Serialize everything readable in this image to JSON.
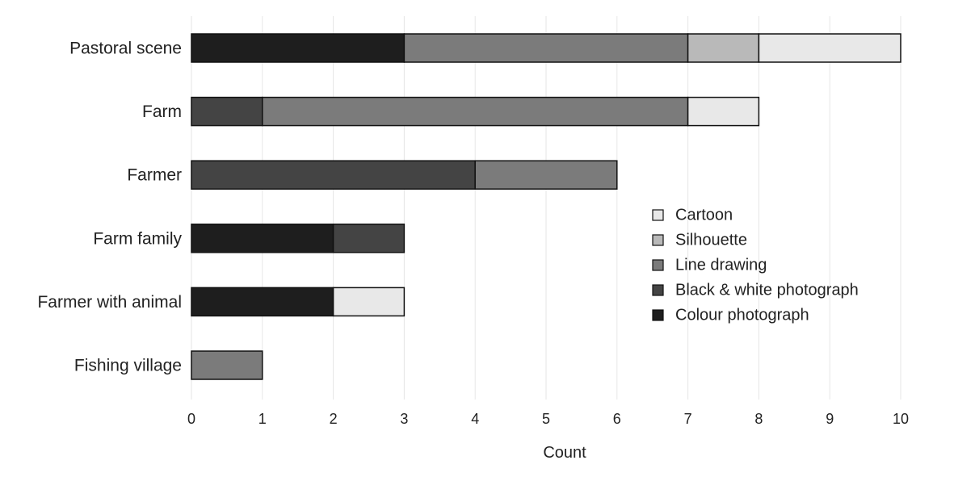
{
  "chart_data": {
    "type": "bar",
    "orientation": "horizontal",
    "stacked": true,
    "categories": [
      "Pastoral scene",
      "Farm",
      "Farmer",
      "Farm family",
      "Farmer with animal",
      "Fishing village"
    ],
    "series": [
      {
        "name": "Colour photograph",
        "color": "#1e1e1e",
        "values": [
          3,
          0,
          0,
          2,
          2,
          0
        ]
      },
      {
        "name": "Black & white photograph",
        "color": "#444444",
        "values": [
          0,
          1,
          4,
          1,
          0,
          0
        ]
      },
      {
        "name": "Line drawing",
        "color": "#7b7b7b",
        "values": [
          4,
          6,
          2,
          0,
          0,
          1
        ]
      },
      {
        "name": "Silhouette",
        "color": "#b9b9b9",
        "values": [
          1,
          0,
          0,
          0,
          0,
          0
        ]
      },
      {
        "name": "Cartoon",
        "color": "#e8e8e8",
        "values": [
          2,
          1,
          0,
          0,
          1,
          0
        ]
      }
    ],
    "xlabel": "Count",
    "ylabel": "",
    "xlim": [
      0,
      10
    ],
    "xticks": [
      0,
      1,
      2,
      3,
      4,
      5,
      6,
      7,
      8,
      9,
      10
    ],
    "grid": true,
    "legend_position": "center-right",
    "legend_order": [
      "Cartoon",
      "Silhouette",
      "Line drawing",
      "Black & white photograph",
      "Colour photograph"
    ]
  }
}
